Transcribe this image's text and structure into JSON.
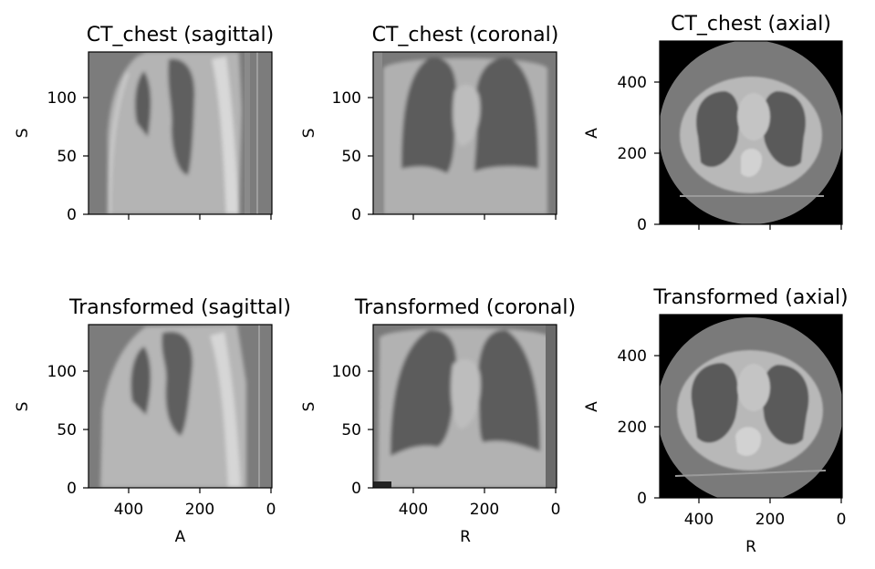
{
  "figure": {
    "panels": [
      {
        "title": "CT_chest (sagittal)",
        "xlabel": "",
        "ylabel": "S",
        "xticks": [],
        "yticks": [
          "0",
          "50",
          "100"
        ]
      },
      {
        "title": "CT_chest (coronal)",
        "xlabel": "",
        "ylabel": "S",
        "xticks": [],
        "yticks": [
          "0",
          "50",
          "100"
        ]
      },
      {
        "title": "CT_chest (axial)",
        "xlabel": "",
        "ylabel": "A",
        "xticks": [],
        "yticks": [
          "0",
          "200",
          "400"
        ]
      },
      {
        "title": "Transformed (sagittal)",
        "xlabel": "A",
        "ylabel": "S",
        "xticks": [
          "400",
          "200",
          "0"
        ],
        "yticks": [
          "0",
          "50",
          "100"
        ]
      },
      {
        "title": "Transformed (coronal)",
        "xlabel": "R",
        "ylabel": "S",
        "xticks": [
          "400",
          "200",
          "0"
        ],
        "yticks": [
          "0",
          "50",
          "100"
        ]
      },
      {
        "title": "Transformed (axial)",
        "xlabel": "R",
        "ylabel": "A",
        "xticks": [
          "400",
          "200",
          "0"
        ],
        "yticks": [
          "0",
          "200",
          "400"
        ]
      }
    ]
  },
  "chart_data": [
    {
      "type": "heatmap",
      "title": "CT_chest (sagittal)",
      "xlabel": "",
      "ylabel": "S",
      "xlim": [
        512,
        0
      ],
      "ylim": [
        0,
        139
      ],
      "xticks": [
        400,
        200,
        0
      ],
      "yticks": [
        0,
        50,
        100
      ],
      "colormap": "gray"
    },
    {
      "type": "heatmap",
      "title": "CT_chest (coronal)",
      "xlabel": "",
      "ylabel": "S",
      "xlim": [
        512,
        0
      ],
      "ylim": [
        0,
        139
      ],
      "xticks": [
        400,
        200,
        0
      ],
      "yticks": [
        0,
        50,
        100
      ],
      "colormap": "gray"
    },
    {
      "type": "heatmap",
      "title": "CT_chest (axial)",
      "xlabel": "",
      "ylabel": "A",
      "xlim": [
        512,
        0
      ],
      "ylim": [
        0,
        512
      ],
      "xticks": [
        400,
        200,
        0
      ],
      "yticks": [
        0,
        200,
        400
      ],
      "colormap": "gray"
    },
    {
      "type": "heatmap",
      "title": "Transformed (sagittal)",
      "xlabel": "A",
      "ylabel": "S",
      "xlim": [
        512,
        0
      ],
      "ylim": [
        0,
        139
      ],
      "xticks": [
        400,
        200,
        0
      ],
      "yticks": [
        0,
        50,
        100
      ],
      "colormap": "gray"
    },
    {
      "type": "heatmap",
      "title": "Transformed (coronal)",
      "xlabel": "R",
      "ylabel": "S",
      "xlim": [
        512,
        0
      ],
      "ylim": [
        0,
        139
      ],
      "xticks": [
        400,
        200,
        0
      ],
      "yticks": [
        0,
        50,
        100
      ],
      "colormap": "gray"
    },
    {
      "type": "heatmap",
      "title": "Transformed (axial)",
      "xlabel": "R",
      "ylabel": "A",
      "xlim": [
        512,
        0
      ],
      "ylim": [
        0,
        512
      ],
      "xticks": [
        400,
        200,
        0
      ],
      "yticks": [
        0,
        200,
        400
      ],
      "colormap": "gray"
    }
  ]
}
